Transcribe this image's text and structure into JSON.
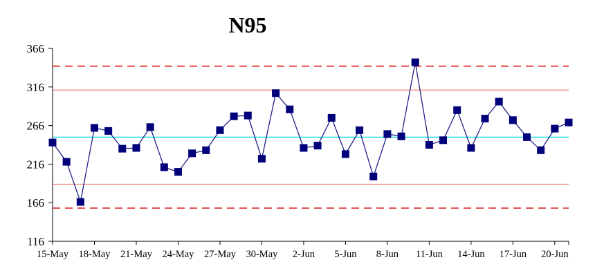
{
  "chart_data": {
    "type": "line",
    "title": "N95",
    "xlabel": "",
    "ylabel": "",
    "ylim": [
      116,
      366
    ],
    "yticks": [
      116,
      166,
      216,
      266,
      316,
      366
    ],
    "xlim": [
      "2020-05-15",
      "2020-06-21"
    ],
    "xtick_labels": [
      "15-May",
      "18-May",
      "21-May",
      "24-May",
      "27-May",
      "30-May",
      "2-Jun",
      "5-Jun",
      "8-Jun",
      "11-Jun",
      "14-Jun",
      "17-Jun",
      "20-Jun"
    ],
    "x": [
      "15-May",
      "16-May",
      "17-May",
      "18-May",
      "19-May",
      "20-May",
      "21-May",
      "22-May",
      "23-May",
      "24-May",
      "25-May",
      "26-May",
      "27-May",
      "28-May",
      "29-May",
      "30-May",
      "31-May",
      "1-Jun",
      "2-Jun",
      "3-Jun",
      "4-Jun",
      "5-Jun",
      "6-Jun",
      "7-Jun",
      "8-Jun",
      "9-Jun",
      "10-Jun",
      "11-Jun",
      "12-Jun",
      "13-Jun",
      "14-Jun",
      "15-Jun",
      "16-Jun",
      "17-Jun",
      "18-Jun",
      "19-Jun",
      "20-Jun",
      "21-Jun"
    ],
    "series": [
      {
        "values": [
          244,
          219,
          167,
          263,
          259,
          236,
          237,
          264,
          212,
          206,
          230,
          234,
          260,
          278,
          279,
          223,
          308,
          287,
          237,
          240,
          276,
          229,
          260,
          200,
          255,
          252,
          348,
          241,
          247,
          286,
          237,
          275,
          297,
          273,
          251,
          234,
          262,
          270
        ]
      }
    ],
    "reference_lines": [
      {
        "value": 251,
        "style": "solid",
        "color": "#00d8e8"
      },
      {
        "value": 312,
        "style": "solid",
        "color": "#f08070"
      },
      {
        "value": 190,
        "style": "solid",
        "color": "#f08070"
      },
      {
        "value": 343,
        "style": "dashed",
        "color": "#d81818"
      },
      {
        "value": 159,
        "style": "dashed",
        "color": "#d81818"
      }
    ],
    "series_color": "#1f1f8a",
    "marker_color": "#00007a",
    "grid": false,
    "legend": "none"
  }
}
